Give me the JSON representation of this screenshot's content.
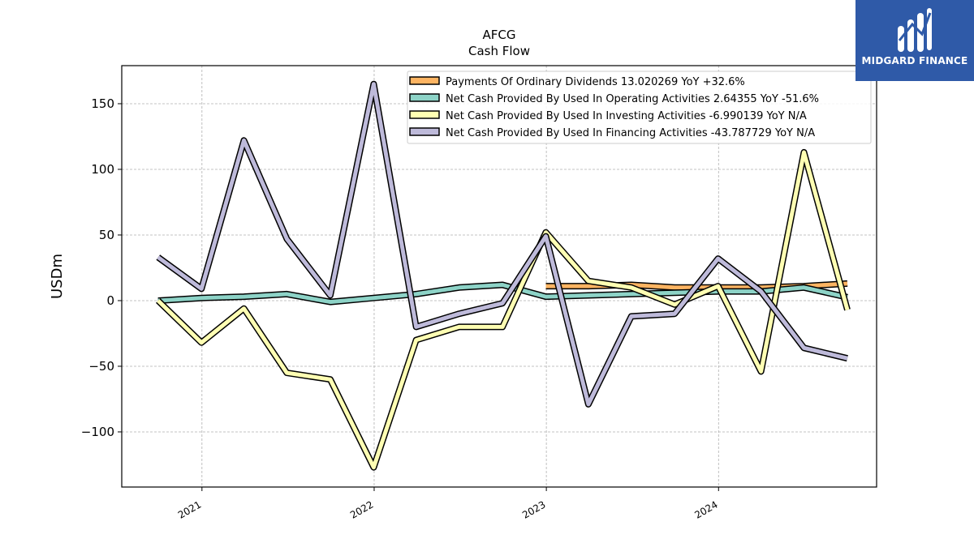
{
  "logo": {
    "name": "MIDGARD FINANCE",
    "color": "#2f5aa8"
  },
  "chart_data": {
    "type": "line",
    "title": "AFCG",
    "subtitle": "Cash Flow",
    "xlabel": "",
    "ylabel": "USDm",
    "xlim": [
      "2020-07-15",
      "2024-12-01"
    ],
    "ylim": [
      -142,
      179
    ],
    "x_ticks": [
      "2021",
      "2022",
      "2023",
      "2024"
    ],
    "y_ticks": [
      -100,
      -50,
      0,
      50,
      100,
      150
    ],
    "grid": true,
    "legend_position": "top-right",
    "x": [
      "2020-09-30",
      "2020-12-31",
      "2021-03-31",
      "2021-06-30",
      "2021-09-30",
      "2021-12-31",
      "2022-03-31",
      "2022-06-30",
      "2022-09-30",
      "2022-12-31",
      "2023-03-31",
      "2023-06-30",
      "2023-09-30",
      "2023-12-31",
      "2024-03-31",
      "2024-06-30",
      "2024-09-30"
    ],
    "series": [
      {
        "name": "Payments Of Ordinary Dividends",
        "legend_label": "Payments Of Ordinary Dividends  13.020269 YoY +32.6%",
        "color": "#fdb462",
        "values": [
          null,
          null,
          null,
          null,
          null,
          null,
          null,
          null,
          null,
          11,
          11,
          12,
          10,
          10,
          10,
          11,
          13
        ]
      },
      {
        "name": "Net Cash Provided By Used In Operating Activities",
        "legend_label": "Net Cash Provided By Used In Operating Activities  2.64355 YoY -51.6%",
        "color": "#8dd3c7",
        "values": [
          0,
          2,
          3,
          5,
          -1,
          2,
          5,
          10,
          12,
          3,
          4,
          5,
          6,
          7,
          7,
          10,
          2.6
        ]
      },
      {
        "name": "Net Cash Provided By Used In Investing Activities",
        "legend_label": "Net Cash Provided By Used In Investing Activities  -6.990139 YoY N/A",
        "color": "#ffffb3",
        "values": [
          0,
          -32,
          -6,
          -55,
          -60,
          -127,
          -30,
          -20,
          -20,
          52,
          15,
          10,
          -3,
          11,
          -54,
          113,
          -7
        ]
      },
      {
        "name": "Net Cash Provided By Used In Financing Activities",
        "legend_label": "Net Cash Provided By Used In Financing Activities  -43.787729 YoY N/A",
        "color": "#bebada",
        "values": [
          33,
          9,
          122,
          47,
          4,
          165,
          -20,
          -10,
          -2,
          49,
          -79,
          -12,
          -10,
          32,
          7,
          -36,
          -44
        ]
      }
    ]
  }
}
